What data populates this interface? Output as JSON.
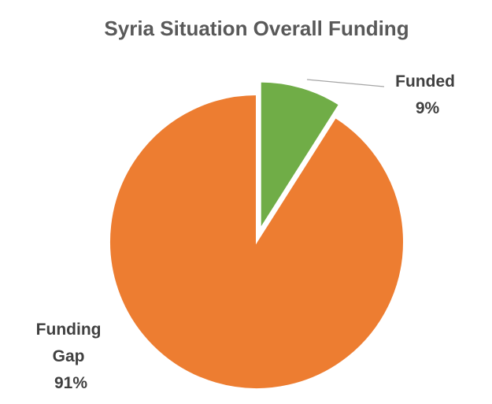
{
  "chart_data": {
    "type": "pie",
    "title": "Syria Situation Overall Funding",
    "slices": [
      {
        "label_lines": [
          "Funded",
          "9%"
        ],
        "value": 9,
        "color": "#70AD47",
        "exploded": true
      },
      {
        "label_lines": [
          "Funding",
          "Gap",
          "91%"
        ],
        "value": 91,
        "color": "#ED7D31",
        "exploded": false
      }
    ]
  }
}
